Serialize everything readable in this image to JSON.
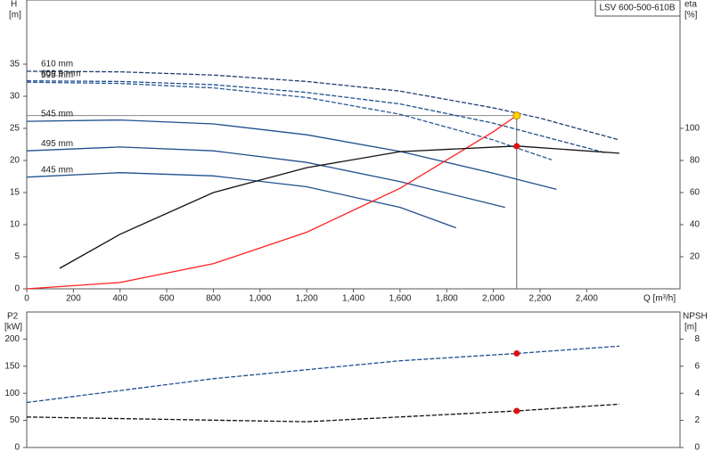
{
  "chart_data": [
    {
      "type": "line",
      "title": "LSV 600-500-610B",
      "xlabel": "Q [m³/h]",
      "ylabel": "H",
      "yunit": "[m]",
      "y2label": "eta",
      "y2unit": "[%]",
      "xlim": [
        0,
        2800
      ],
      "ylim": [
        0,
        45
      ],
      "y2lim": [
        0,
        180
      ],
      "xticks": [
        0,
        200,
        400,
        600,
        800,
        {
          "value": 1000,
          "label": "1,000"
        },
        {
          "value": 1200,
          "label": "1,200"
        },
        {
          "value": 1400,
          "label": "1,400"
        },
        {
          "value": 1600,
          "label": "1,600"
        },
        {
          "value": 1800,
          "label": "1,800"
        },
        {
          "value": 2000,
          "label": "2,000"
        },
        {
          "value": 2200,
          "label": "2,200"
        },
        {
          "value": 2400,
          "label": "2,400"
        }
      ],
      "yticks": [
        0,
        5,
        10,
        15,
        20,
        25,
        30,
        35
      ],
      "y2ticks": [
        20,
        40,
        60,
        80,
        100
      ],
      "series": [
        {
          "name": "610 mm",
          "color": "#1f3f6e",
          "dash": true,
          "x": [
            0,
            400,
            800,
            1200,
            1600,
            2000,
            2200,
            2540
          ],
          "values": [
            33.9,
            33.8,
            33.3,
            32.3,
            30.8,
            28.2,
            26.6,
            23.2
          ]
        },
        {
          "name": "609.9 mm",
          "color": "#1f4f8e",
          "dash": true,
          "x": [
            0,
            400,
            800,
            1200,
            1600,
            2000,
            2480
          ],
          "values": [
            32.4,
            32.3,
            31.8,
            30.6,
            28.8,
            25.8,
            21.2
          ]
        },
        {
          "name": "595 mm",
          "color": "#2a5a96",
          "dash": true,
          "x": [
            0,
            400,
            800,
            1200,
            1600,
            2000,
            2250
          ],
          "values": [
            32.2,
            32.0,
            31.3,
            29.8,
            27.2,
            23.2,
            20.1
          ]
        },
        {
          "name": "545 mm",
          "color": "#1f4f8e",
          "dash": false,
          "x": [
            0,
            400,
            800,
            1200,
            1600,
            2000,
            2270
          ],
          "values": [
            26.1,
            26.3,
            25.7,
            24.0,
            21.4,
            18.0,
            15.5
          ]
        },
        {
          "name": "495 mm",
          "color": "#1f4f8e",
          "dash": false,
          "x": [
            0,
            400,
            800,
            1200,
            1600,
            2050
          ],
          "values": [
            21.5,
            22.1,
            21.5,
            19.7,
            16.7,
            12.7
          ]
        },
        {
          "name": "445 mm",
          "color": "#1f4f8e",
          "dash": false,
          "x": [
            0,
            400,
            800,
            1200,
            1600,
            1840
          ],
          "values": [
            17.4,
            18.1,
            17.6,
            15.9,
            12.7,
            9.5
          ]
        },
        {
          "color": "#ff2020",
          "dash": false,
          "x": [
            0,
            400,
            800,
            1200,
            1600,
            2000,
            2100
          ],
          "values": [
            0,
            0.98,
            3.92,
            8.82,
            15.67,
            24.49,
            27
          ]
        },
        {
          "color": "#111111",
          "dash": false,
          "axis": "y2",
          "x": [
            141,
            400,
            800,
            1200,
            1600,
            2100,
            2540
          ],
          "values": [
            12.8,
            34,
            60,
            75.5,
            85.5,
            89,
            84.5
          ]
        }
      ],
      "operating_point": {
        "x": 2100,
        "y": 27,
        "eta": 88.9
      }
    },
    {
      "type": "line",
      "ylabel": "P2",
      "yunit": "[kW]",
      "y2label": "NPSH",
      "y2unit": "[m]",
      "xlim": [
        0,
        2800
      ],
      "ylim": [
        0,
        250
      ],
      "y2lim": [
        0,
        10
      ],
      "yticks": [
        0,
        50,
        100,
        150,
        200
      ],
      "y2ticks": [
        0,
        2,
        4,
        6,
        8
      ],
      "series": [
        {
          "color": "#1f4f8e",
          "dash": true,
          "x": [
            0,
            800,
            1600,
            2100,
            2540
          ],
          "values": [
            83,
            127,
            160,
            173.6,
            187
          ]
        },
        {
          "color": "#111111",
          "dash": true,
          "axis": "y2",
          "x": [
            0,
            1200,
            2100,
            2540
          ],
          "values": [
            2.25,
            1.9,
            2.7,
            3.2
          ]
        }
      ],
      "operating_point": {
        "x": 2100,
        "p2": 173.6,
        "npsh": 2.7
      }
    }
  ]
}
